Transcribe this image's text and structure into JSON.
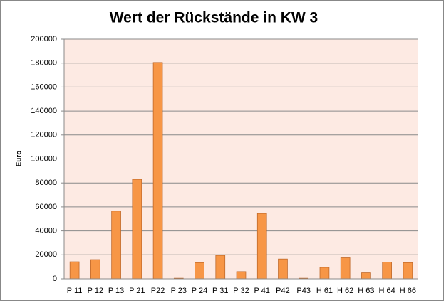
{
  "chart_data": {
    "type": "bar",
    "title": "Wert der Rückstände in KW 3",
    "y_label": "Euro",
    "categories": [
      "P 11",
      "P 12",
      "P 13",
      "P 21",
      "P22",
      "P 23",
      "P 24",
      "P 31",
      "P 32",
      "P 41",
      "P42",
      "P43",
      "H 61",
      "H 62",
      "H 63",
      "H 64",
      "H 66"
    ],
    "values": [
      14200,
      16000,
      56500,
      83000,
      180500,
      500,
      13500,
      19500,
      6000,
      54500,
      16500,
      500,
      9500,
      17500,
      5000,
      14000,
      13500
    ],
    "color": "#f79646",
    "ylim": [
      0,
      200000
    ],
    "yticks": [
      0,
      20000,
      40000,
      60000,
      80000,
      100000,
      120000,
      140000,
      160000,
      180000,
      200000
    ],
    "grid": true
  }
}
